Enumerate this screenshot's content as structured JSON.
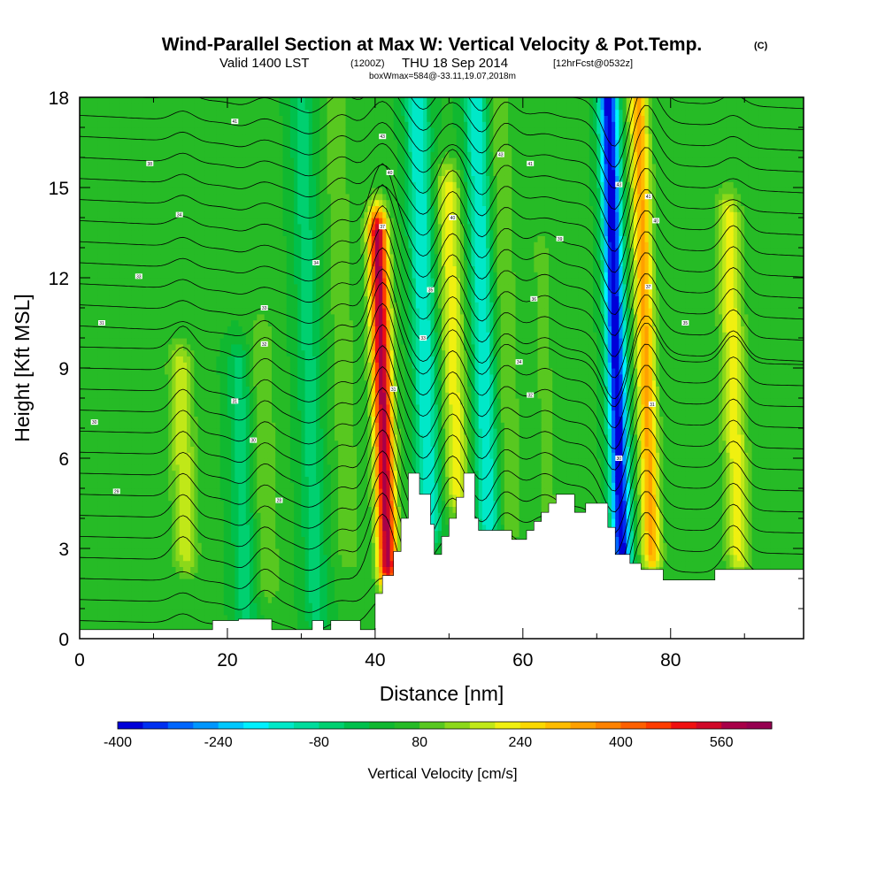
{
  "header": {
    "title": "Wind-Parallel Section at Max W: Vertical Velocity & Pot.Temp.",
    "title_tag": "(C)",
    "subtitle_main": "Valid 1400 LST",
    "subtitle_utc": "(1200Z)",
    "subtitle_date": "THU 18 Sep 2014",
    "subtitle_fcst": "[12hrFcst@0532z]",
    "note": "boxWmax=584@-33.11,19.07,2018m"
  },
  "chart_data": {
    "type": "heatmap",
    "xlabel": "Distance [nm]",
    "ylabel": "Height [Kft MSL]",
    "xlim": [
      0,
      98
    ],
    "ylim": [
      0,
      18
    ],
    "xticks": [
      0,
      20,
      40,
      60,
      80
    ],
    "yticks": [
      0,
      3,
      6,
      9,
      12,
      15,
      18
    ],
    "grid": false,
    "series_description": "Filled contours of vertical velocity with black potential temperature isolines; white area is terrain",
    "velocity_features": [
      {
        "x": 41,
        "y_range": [
          2.5,
          13.5
        ],
        "peak_cm_s": 584
      },
      {
        "x": 46.5,
        "y_range": [
          4,
          18
        ],
        "peak_cm_s": -160
      },
      {
        "x": 50.5,
        "y_range": [
          5,
          15
        ],
        "peak_cm_s": 220
      },
      {
        "x": 54.5,
        "y_range": [
          4,
          18
        ],
        "peak_cm_s": -160
      },
      {
        "x": 57.5,
        "y_range": [
          4,
          18
        ],
        "peak_cm_s": 120
      },
      {
        "x": 72.5,
        "y_range": [
          2.5,
          18
        ],
        "peak_cm_s": -400
      },
      {
        "x": 76.5,
        "y_range": [
          3,
          18
        ],
        "peak_cm_s": 330
      },
      {
        "x": 88.5,
        "y_range": [
          3,
          14
        ],
        "peak_cm_s": 220
      },
      {
        "x": 14,
        "y_range": [
          3,
          9
        ],
        "peak_cm_s": 190
      },
      {
        "x": 25,
        "y_range": [
          2,
          10
        ],
        "peak_cm_s": 120
      },
      {
        "x": 22,
        "y_range": [
          1,
          9
        ],
        "peak_cm_s": -60
      },
      {
        "x": 35.5,
        "y_range": [
          3,
          18
        ],
        "peak_cm_s": 110
      },
      {
        "x": 31,
        "y_range": [
          1,
          18
        ],
        "peak_cm_s": -60
      },
      {
        "x": 63,
        "y_range": [
          4,
          13
        ],
        "peak_cm_s": 90
      }
    ],
    "terrain_profile": [
      [
        0,
        0.3
      ],
      [
        18,
        0.3
      ],
      [
        18,
        0.6
      ],
      [
        21.5,
        0.6
      ],
      [
        21.5,
        0.65
      ],
      [
        26,
        0.65
      ],
      [
        26,
        0.3
      ],
      [
        31.5,
        0.3
      ],
      [
        31.5,
        0.6
      ],
      [
        33,
        0.6
      ],
      [
        33,
        0.3
      ],
      [
        34,
        0.3
      ],
      [
        34,
        0.6
      ],
      [
        38,
        0.6
      ],
      [
        38,
        0.3
      ],
      [
        40,
        0.3
      ],
      [
        40,
        1.5
      ],
      [
        41,
        1.5
      ],
      [
        41,
        2.1
      ],
      [
        42.5,
        2.1
      ],
      [
        42.5,
        2.9
      ],
      [
        43.5,
        2.9
      ],
      [
        43.5,
        4.0
      ],
      [
        44.5,
        4.0
      ],
      [
        44.5,
        5.5
      ],
      [
        46,
        5.5
      ],
      [
        46,
        4.8
      ],
      [
        47.5,
        4.8
      ],
      [
        47.5,
        3.8
      ],
      [
        48,
        3.8
      ],
      [
        48,
        2.8
      ],
      [
        49,
        2.8
      ],
      [
        49,
        3.4
      ],
      [
        50,
        3.4
      ],
      [
        50,
        4.0
      ],
      [
        51,
        4.0
      ],
      [
        51,
        4.7
      ],
      [
        52,
        4.7
      ],
      [
        52,
        5.5
      ],
      [
        53.5,
        5.5
      ],
      [
        53.5,
        4.0
      ],
      [
        54,
        4.0
      ],
      [
        54,
        3.6
      ],
      [
        58.5,
        3.6
      ],
      [
        58.5,
        3.3
      ],
      [
        60.5,
        3.3
      ],
      [
        60.5,
        3.6
      ],
      [
        61.5,
        3.6
      ],
      [
        61.5,
        3.9
      ],
      [
        62.5,
        3.9
      ],
      [
        62.5,
        4.2
      ],
      [
        63.5,
        4.2
      ],
      [
        63.5,
        4.5
      ],
      [
        64.5,
        4.5
      ],
      [
        64.5,
        4.8
      ],
      [
        67,
        4.8
      ],
      [
        67,
        4.2
      ],
      [
        68.5,
        4.2
      ],
      [
        68.5,
        4.5
      ],
      [
        71.5,
        4.5
      ],
      [
        71.5,
        3.7
      ],
      [
        72.5,
        3.7
      ],
      [
        72.5,
        2.8
      ],
      [
        74.5,
        2.8
      ],
      [
        74.5,
        2.5
      ],
      [
        76,
        2.5
      ],
      [
        76,
        2.3
      ],
      [
        79,
        2.3
      ],
      [
        79,
        1.95
      ],
      [
        86,
        1.95
      ],
      [
        86,
        2.3
      ],
      [
        98,
        2.3
      ]
    ],
    "isentrope_labels": [
      {
        "x": 21,
        "y": 17.2,
        "text": "41"
      },
      {
        "x": 9.5,
        "y": 15.8,
        "text": "38"
      },
      {
        "x": 13.5,
        "y": 14.1,
        "text": "34"
      },
      {
        "x": 8,
        "y": 12.05,
        "text": "33"
      },
      {
        "x": 3,
        "y": 10.5,
        "text": "31"
      },
      {
        "x": 2,
        "y": 7.2,
        "text": "30"
      },
      {
        "x": 5,
        "y": 4.9,
        "text": "29"
      },
      {
        "x": 32,
        "y": 12.5,
        "text": "34"
      },
      {
        "x": 25,
        "y": 11,
        "text": "33"
      },
      {
        "x": 25,
        "y": 9.8,
        "text": "32"
      },
      {
        "x": 21,
        "y": 7.9,
        "text": "31"
      },
      {
        "x": 23.5,
        "y": 6.6,
        "text": "30"
      },
      {
        "x": 27,
        "y": 4.6,
        "text": "28"
      },
      {
        "x": 41,
        "y": 16.7,
        "text": "43"
      },
      {
        "x": 42,
        "y": 15.5,
        "text": "40"
      },
      {
        "x": 41,
        "y": 13.7,
        "text": "37"
      },
      {
        "x": 47.5,
        "y": 11.6,
        "text": "35"
      },
      {
        "x": 46.5,
        "y": 10,
        "text": "33"
      },
      {
        "x": 42.5,
        "y": 8.3,
        "text": "31"
      },
      {
        "x": 50.5,
        "y": 14,
        "text": "40"
      },
      {
        "x": 57,
        "y": 16.1,
        "text": "43"
      },
      {
        "x": 61,
        "y": 15.8,
        "text": "41"
      },
      {
        "x": 65,
        "y": 13.3,
        "text": "39"
      },
      {
        "x": 61.5,
        "y": 11.3,
        "text": "36"
      },
      {
        "x": 59.5,
        "y": 9.2,
        "text": "34"
      },
      {
        "x": 61,
        "y": 8.1,
        "text": "32"
      },
      {
        "x": 73,
        "y": 15.1,
        "text": "43"
      },
      {
        "x": 77,
        "y": 14.7,
        "text": "41"
      },
      {
        "x": 78,
        "y": 13.9,
        "text": "40"
      },
      {
        "x": 77,
        "y": 11.7,
        "text": "37"
      },
      {
        "x": 82,
        "y": 10.5,
        "text": "35"
      },
      {
        "x": 77.5,
        "y": 7.8,
        "text": "31"
      },
      {
        "x": 73,
        "y": 6,
        "text": "30"
      }
    ],
    "colorbar": {
      "title": "Vertical Velocity [cm/s]",
      "min": -400,
      "max": 640,
      "step": 40,
      "tick_labels": [
        "-400",
        "-240",
        "-80",
        "80",
        "240",
        "400",
        "560"
      ],
      "colors": [
        "#0000d8",
        "#0030f0",
        "#0066ff",
        "#0096ff",
        "#00c8ff",
        "#00f0ff",
        "#00e8c8",
        "#00dc9c",
        "#00d070",
        "#00c04c",
        "#10b830",
        "#26bb26",
        "#58c820",
        "#8cd81a",
        "#c0e818",
        "#f0f010",
        "#fad800",
        "#ffbc00",
        "#ffa000",
        "#ff8200",
        "#ff6000",
        "#ff3c00",
        "#f01010",
        "#d00828",
        "#a80048",
        "#960050"
      ]
    }
  }
}
